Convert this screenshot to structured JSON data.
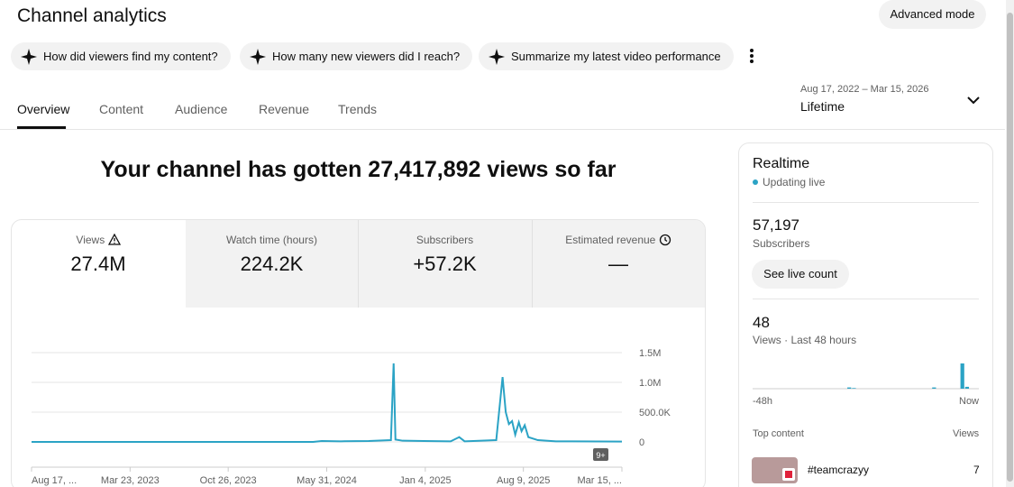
{
  "header": {
    "title": "Channel analytics",
    "button": "Advanced mode"
  },
  "suggestions": [
    "How did viewers find my content?",
    "How many new viewers did I reach?",
    "Summarize my latest video performance"
  ],
  "tabs": [
    "Overview",
    "Content",
    "Audience",
    "Revenue",
    "Trends"
  ],
  "date_range": {
    "label": "Aug 17, 2022 – Mar 15, 2026",
    "value": "Lifetime"
  },
  "headline": "Your channel has gotten 27,417,892 views so far",
  "metrics": [
    {
      "label": "Views",
      "value": "27.4M"
    },
    {
      "label": "Watch time (hours)",
      "value": "224.2K"
    },
    {
      "label": "Subscribers",
      "value": "+57.2K"
    },
    {
      "label": "Estimated revenue",
      "value": "—"
    }
  ],
  "chart_data": {
    "type": "line",
    "color": "#2ba3c5",
    "x": [
      "2022-08-17",
      "2024-05-01",
      "2024-05-20",
      "2024-07-01",
      "2024-09-01",
      "2024-10-20",
      "2024-10-26",
      "2024-10-30",
      "2024-11-15",
      "2025-01-01",
      "2025-03-01",
      "2025-03-20",
      "2025-04-01",
      "2025-06-10",
      "2025-06-24",
      "2025-07-01",
      "2025-07-08",
      "2025-07-15",
      "2025-07-22",
      "2025-07-30",
      "2025-08-05",
      "2025-08-12",
      "2025-08-20",
      "2025-09-10",
      "2025-10-20",
      "2026-03-15"
    ],
    "values": [
      0,
      0,
      15000,
      10000,
      15000,
      30000,
      1320000,
      40000,
      20000,
      15000,
      10000,
      80000,
      10000,
      30000,
      1090000,
      500000,
      300000,
      350000,
      120000,
      330000,
      180000,
      280000,
      80000,
      30000,
      10000,
      5000
    ],
    "xlim": [
      "2022-08-17",
      "2026-03-15"
    ],
    "xticks": [
      {
        "value": "2022-08-17",
        "label": "Aug 17, ..."
      },
      {
        "value": "2023-03-23",
        "label": "Mar 23, 2023"
      },
      {
        "value": "2023-10-26",
        "label": "Oct 26, 2023"
      },
      {
        "value": "2024-05-31",
        "label": "May 31, 2024"
      },
      {
        "value": "2025-01-04",
        "label": "Jan 4, 2025"
      },
      {
        "value": "2025-08-09",
        "label": "Aug 9, 2025"
      },
      {
        "value": "2026-03-15",
        "label": "Mar 15, ..."
      }
    ],
    "ylim": [
      0,
      1500000
    ],
    "yticks": [
      0,
      {
        "value": 500000,
        "label": "500.0K"
      },
      {
        "value": 1000000,
        "label": "1.0M"
      },
      {
        "value": 1500000,
        "label": "1.5M"
      }
    ],
    "grid": true,
    "badge": "9+"
  },
  "realtime": {
    "title": "Realtime",
    "status": "Updating live",
    "subscribers": "57,197",
    "subscribers_label": "Subscribers",
    "button": "See live count",
    "views": "48",
    "views_label": "Views · Last 48 hours",
    "hourly_views": [
      0,
      0,
      0,
      0,
      0,
      0,
      0,
      0,
      0,
      0,
      0,
      0,
      0,
      0,
      0,
      0,
      0,
      0,
      0,
      0,
      2,
      1,
      0,
      0,
      0,
      0,
      0,
      0,
      0,
      0,
      0,
      0,
      0,
      0,
      0,
      0,
      0,
      0,
      2,
      0,
      0,
      0,
      0,
      0,
      40,
      3,
      0,
      0
    ],
    "x_start": "-48h",
    "x_end": "Now",
    "top_content_label": "Top content",
    "views_header": "Views",
    "top_content": [
      {
        "title": "#teamcrazyy",
        "views": "7"
      }
    ]
  }
}
